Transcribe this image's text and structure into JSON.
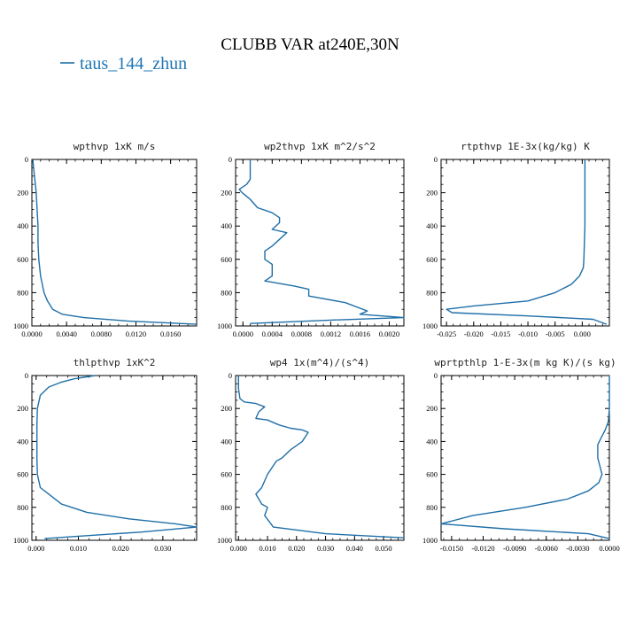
{
  "figure": {
    "title": "CLUBB VAR at240E,30N",
    "legend_label": "taus_144_zhun",
    "line_color": "#1f6fa8"
  },
  "chart_data": [
    {
      "type": "line",
      "title": "wpthvp   1xK m/s",
      "xlim": [
        0.0,
        0.019
      ],
      "ylim": [
        1000,
        0
      ],
      "x_ticks": [
        "0.0000",
        "0.0040",
        "0.0080",
        "0.0120",
        "0.0160"
      ],
      "x_tick_values": [
        0.0,
        0.004,
        0.008,
        0.012,
        0.016
      ],
      "y_ticks": [
        "0",
        "200",
        "400",
        "600",
        "800",
        "1000"
      ],
      "y_tick_values": [
        0,
        200,
        400,
        600,
        800,
        1000
      ],
      "series": [
        {
          "x": [
            0.0001,
            0.0003,
            0.0005,
            0.0006,
            0.0007,
            0.0007,
            0.0008,
            0.001,
            0.0014,
            0.0018,
            0.0024,
            0.0035,
            0.006,
            0.011,
            0.019
          ],
          "y": [
            0,
            100,
            200,
            300,
            400,
            500,
            600,
            700,
            800,
            850,
            900,
            930,
            950,
            970,
            990
          ]
        }
      ]
    },
    {
      "type": "line",
      "title": "wp2thvp   1xK m^2/s^2",
      "xlim": [
        -0.0001,
        0.0022
      ],
      "ylim": [
        1000,
        0
      ],
      "x_ticks": [
        "0.0000",
        "0.0004",
        "0.0008",
        "0.0012",
        "0.0016",
        "0.0020"
      ],
      "x_tick_values": [
        0.0,
        0.0004,
        0.0008,
        0.0012,
        0.0016,
        0.002
      ],
      "y_ticks": [
        "0",
        "200",
        "400",
        "600",
        "800",
        "1000"
      ],
      "y_tick_values": [
        0,
        200,
        400,
        600,
        800,
        1000
      ],
      "series": [
        {
          "x": [
            0.0001,
            0.0001,
            0.0001,
            5e-05,
            -5e-05,
            -1e-05,
            0.0001,
            0.0002,
            0.0004,
            0.0005,
            0.0005,
            0.0004,
            0.0006,
            0.0005,
            0.0004,
            0.0003,
            0.0003,
            0.0004,
            0.0004,
            0.0004,
            0.0003,
            0.0007,
            0.0009,
            0.0009,
            0.0009,
            0.0014,
            0.0017,
            0.0016,
            0.0022,
            0.0012,
            0.0001
          ],
          "y": [
            0,
            60,
            120,
            150,
            180,
            200,
            240,
            290,
            320,
            350,
            380,
            420,
            440,
            480,
            520,
            550,
            600,
            630,
            660,
            700,
            730,
            760,
            780,
            800,
            820,
            860,
            910,
            930,
            950,
            965,
            985
          ]
        }
      ]
    },
    {
      "type": "line",
      "title": "rtpthvp   1E-3x(kg/kg) K",
      "xlim": [
        -0.026,
        0.005
      ],
      "ylim": [
        1000,
        0
      ],
      "x_ticks": [
        "-0.025",
        "-0.020",
        "-0.015",
        "-0.010",
        "-0.005",
        "0.000"
      ],
      "x_tick_values": [
        -0.025,
        -0.02,
        -0.015,
        -0.01,
        -0.005,
        0.0
      ],
      "y_ticks": [
        "0",
        "200",
        "400",
        "600",
        "800",
        "1000"
      ],
      "y_tick_values": [
        0,
        200,
        400,
        600,
        800,
        1000
      ],
      "series": [
        {
          "x": [
            0.0005,
            0.0005,
            0.0005,
            0.0004,
            0.0003,
            0.0002,
            -0.0005,
            -0.002,
            -0.005,
            -0.01,
            -0.02,
            -0.025,
            -0.024,
            -0.01,
            0.002,
            0.0045
          ],
          "y": [
            0,
            200,
            400,
            500,
            600,
            650,
            700,
            750,
            800,
            850,
            880,
            900,
            920,
            940,
            960,
            990
          ]
        }
      ]
    },
    {
      "type": "line",
      "title": "thlpthvp   1xK^2",
      "xlim": [
        -0.001,
        0.038
      ],
      "ylim": [
        1000,
        0
      ],
      "x_ticks": [
        "0.000",
        "0.010",
        "0.020",
        "0.030"
      ],
      "x_tick_values": [
        0.0,
        0.01,
        0.02,
        0.03
      ],
      "y_ticks": [
        "0",
        "200",
        "400",
        "600",
        "800",
        "1000"
      ],
      "y_tick_values": [
        0,
        200,
        400,
        600,
        800,
        1000
      ],
      "series": [
        {
          "x": [
            0.014,
            0.009,
            0.006,
            0.003,
            0.001,
            0.0003,
            0.0002,
            0.0002,
            0.0002,
            0.0003,
            0.001,
            0.003,
            0.006,
            0.012,
            0.022,
            0.033,
            0.038,
            0.025,
            0.01,
            0.002
          ],
          "y": [
            0,
            20,
            40,
            70,
            120,
            200,
            300,
            400,
            500,
            600,
            680,
            720,
            780,
            830,
            870,
            900,
            920,
            950,
            975,
            990
          ]
        }
      ]
    },
    {
      "type": "line",
      "title": "wp4   1x(m^4)/(s^4)",
      "xlim": [
        -0.001,
        0.057
      ],
      "ylim": [
        1000,
        0
      ],
      "x_ticks": [
        "0.000",
        "0.010",
        "0.020",
        "0.030",
        "0.040",
        "0.050"
      ],
      "x_tick_values": [
        0.0,
        0.01,
        0.02,
        0.03,
        0.04,
        0.05
      ],
      "y_ticks": [
        "0",
        "200",
        "400",
        "600",
        "800",
        "1000"
      ],
      "y_tick_values": [
        0,
        200,
        400,
        600,
        800,
        1000
      ],
      "series": [
        {
          "x": [
            0.0,
            0.0,
            0.0005,
            0.002,
            0.006,
            0.009,
            0.007,
            0.006,
            0.01,
            0.014,
            0.018,
            0.022,
            0.024,
            0.022,
            0.018,
            0.015,
            0.013,
            0.01,
            0.008,
            0.006,
            0.008,
            0.01,
            0.009,
            0.012,
            0.03,
            0.057
          ],
          "y": [
            0,
            80,
            140,
            160,
            170,
            190,
            220,
            260,
            270,
            300,
            320,
            330,
            345,
            400,
            450,
            500,
            520,
            600,
            680,
            720,
            780,
            800,
            850,
            920,
            960,
            985
          ]
        }
      ]
    },
    {
      "type": "line",
      "title": "wprtpthlp   1-E-3x(m kg K)/(s kg)",
      "xlim": [
        -0.016,
        0.0
      ],
      "ylim": [
        1000,
        0
      ],
      "x_ticks": [
        "-0.0150",
        "-0.0120",
        "-0.0090",
        "-0.0060",
        "-0.0030",
        "0.0000"
      ],
      "x_tick_values": [
        -0.015,
        -0.012,
        -0.009,
        -0.006,
        -0.003,
        0.0
      ],
      "y_ticks": [
        "0",
        "200",
        "400",
        "600",
        "800",
        "1000"
      ],
      "y_tick_values": [
        0,
        200,
        400,
        600,
        800,
        1000
      ],
      "series": [
        {
          "x": [
            0.0,
            0.0,
            -0.0001,
            -0.0004,
            -0.0008,
            -0.0011,
            -0.0011,
            -0.0007,
            -0.001,
            -0.002,
            -0.004,
            -0.008,
            -0.013,
            -0.016,
            -0.01,
            -0.002,
            0.0
          ],
          "y": [
            0,
            200,
            280,
            330,
            380,
            420,
            500,
            600,
            650,
            700,
            750,
            800,
            850,
            900,
            930,
            960,
            990
          ]
        }
      ]
    }
  ]
}
